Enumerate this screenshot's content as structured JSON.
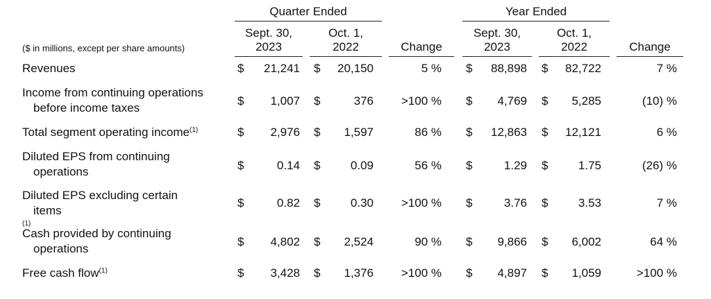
{
  "header": {
    "quarter_title": "Quarter Ended",
    "year_title": "Year Ended",
    "units_note": "($ in millions, except per share amounts)",
    "columns": {
      "q_current": [
        "Sept. 30,",
        "2023"
      ],
      "q_prior": [
        "Oct. 1,",
        "2022"
      ],
      "q_change": "Change",
      "y_current": [
        "Sept. 30,",
        "2023"
      ],
      "y_prior": [
        "Oct. 1,",
        "2022"
      ],
      "y_change": "Change"
    }
  },
  "footnote_marker": "(1)",
  "currency_symbol": "$",
  "rows": [
    {
      "label": [
        "Revenues"
      ],
      "footnote": false,
      "q_current": "21,241",
      "q_prior": "20,150",
      "q_change": "5 %",
      "y_current": "88,898",
      "y_prior": "82,722",
      "y_change": "7 %"
    },
    {
      "label": [
        "Income from continuing operations",
        "before income taxes"
      ],
      "footnote": false,
      "q_current": "1,007",
      "q_prior": "376",
      "q_change": ">100 %",
      "y_current": "4,769",
      "y_prior": "5,285",
      "y_change": "(10) %"
    },
    {
      "label": [
        "Total segment operating income"
      ],
      "footnote": true,
      "q_current": "2,976",
      "q_prior": "1,597",
      "q_change": "86 %",
      "y_current": "12,863",
      "y_prior": "12,121",
      "y_change": "6 %"
    },
    {
      "label": [
        "Diluted EPS from continuing",
        "operations"
      ],
      "footnote": false,
      "q_current": "0.14",
      "q_prior": "0.09",
      "q_change": "56 %",
      "y_current": "1.29",
      "y_prior": "1.75",
      "y_change": "(26) %"
    },
    {
      "label": [
        "Diluted EPS excluding certain",
        "items"
      ],
      "footnote": true,
      "q_current": "0.82",
      "q_prior": "0.30",
      "q_change": ">100 %",
      "y_current": "3.76",
      "y_prior": "3.53",
      "y_change": "7 %"
    },
    {
      "label": [
        "Cash provided by continuing",
        "operations"
      ],
      "footnote": false,
      "q_current": "4,802",
      "q_prior": "2,524",
      "q_change": "90 %",
      "y_current": "9,866",
      "y_prior": "6,002",
      "y_change": "64 %"
    },
    {
      "label": [
        "Free cash flow"
      ],
      "footnote": true,
      "q_current": "3,428",
      "q_prior": "1,376",
      "q_change": ">100 %",
      "y_current": "4,897",
      "y_prior": "1,059",
      "y_change": ">100 %"
    }
  ]
}
